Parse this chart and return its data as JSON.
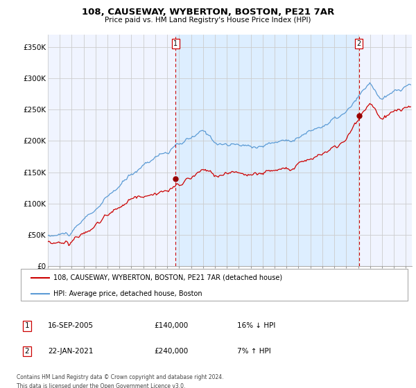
{
  "title": "108, CAUSEWAY, WYBERTON, BOSTON, PE21 7AR",
  "subtitle": "Price paid vs. HM Land Registry's House Price Index (HPI)",
  "ylabel_ticks": [
    "£0",
    "£50K",
    "£100K",
    "£150K",
    "£200K",
    "£250K",
    "£300K",
    "£350K"
  ],
  "ytick_values": [
    0,
    50000,
    100000,
    150000,
    200000,
    250000,
    300000,
    350000
  ],
  "ylim": [
    0,
    370000
  ],
  "xlim_start": 1995.0,
  "xlim_end": 2025.5,
  "sale1": {
    "date_num": 2005.71,
    "price": 140000,
    "label": "1",
    "pct": "16% ↓ HPI",
    "date_str": "16-SEP-2005",
    "price_str": "£140,000"
  },
  "sale2": {
    "date_num": 2021.06,
    "price": 240000,
    "label": "2",
    "pct": "7% ↑ HPI",
    "date_str": "22-JAN-2021",
    "price_str": "£240,000"
  },
  "hpi_line_color": "#5b9bd5",
  "price_line_color": "#cc0000",
  "sale_dot_color": "#990000",
  "dashed_line_color": "#cc0000",
  "shaded_region_color": "#ddeeff",
  "legend_label1": "108, CAUSEWAY, WYBERTON, BOSTON, PE21 7AR (detached house)",
  "legend_label2": "HPI: Average price, detached house, Boston",
  "footer1": "Contains HM Land Registry data © Crown copyright and database right 2024.",
  "footer2": "This data is licensed under the Open Government Licence v3.0.",
  "xtick_years": [
    1995,
    1996,
    1997,
    1998,
    1999,
    2000,
    2001,
    2002,
    2003,
    2004,
    2005,
    2006,
    2007,
    2008,
    2009,
    2010,
    2011,
    2012,
    2013,
    2014,
    2015,
    2016,
    2017,
    2018,
    2019,
    2020,
    2021,
    2022,
    2023,
    2024,
    2025
  ],
  "background_color": "#ffffff",
  "plot_bg_color": "#f0f4ff",
  "grid_color": "#cccccc"
}
